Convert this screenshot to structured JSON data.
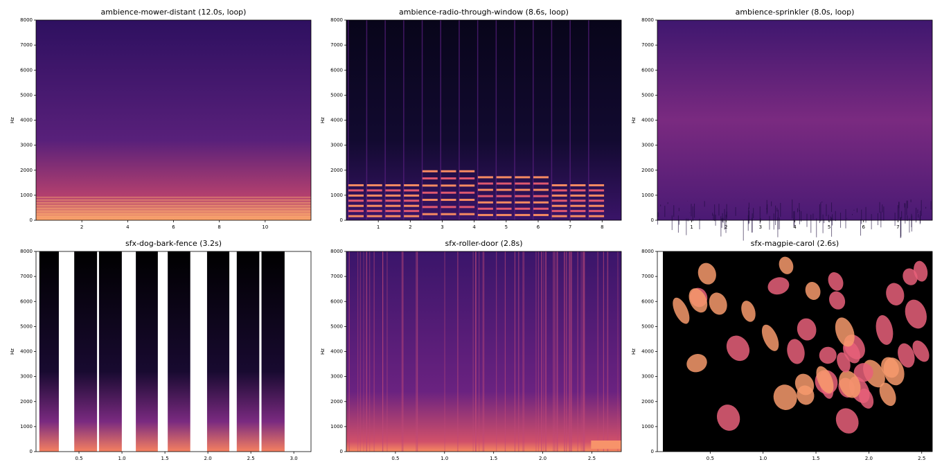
{
  "chart_data": [
    {
      "type": "spectrogram",
      "title": "ambience-mower-distant  (12.0s, loop)",
      "ylabel": "Hz",
      "xlim": [
        0,
        12
      ],
      "ylim": [
        0,
        8000
      ],
      "xticks": [
        2,
        4,
        6,
        8,
        10
      ],
      "yticks": [
        0,
        1000,
        2000,
        3000,
        4000,
        5000,
        6000,
        7000,
        8000
      ]
    },
    {
      "type": "spectrogram",
      "title": "ambience-radio-through-window  (8.6s, loop)",
      "ylabel": "Hz",
      "xlim": [
        0,
        8.6
      ],
      "ylim": [
        0,
        8000
      ],
      "xticks": [
        1,
        2,
        3,
        4,
        5,
        6,
        7,
        8
      ],
      "yticks": [
        0,
        1000,
        2000,
        3000,
        4000,
        5000,
        6000,
        7000,
        8000
      ]
    },
    {
      "type": "spectrogram",
      "title": "ambience-sprinkler  (8.0s, loop)",
      "ylabel": "Hz",
      "xlim": [
        0,
        8
      ],
      "ylim": [
        0,
        8000
      ],
      "xticks": [
        1,
        2,
        3,
        4,
        5,
        6,
        7
      ],
      "yticks": [
        0,
        1000,
        2000,
        3000,
        4000,
        5000,
        6000,
        7000,
        8000
      ]
    },
    {
      "type": "spectrogram",
      "title": "sfx-dog-bark-fence  (3.2s)",
      "ylabel": "Hz",
      "xlim": [
        0,
        3.2
      ],
      "ylim": [
        0,
        8000
      ],
      "xticks": [
        0.5,
        {
          "value": 1,
          "label": "1.0"
        },
        1.5,
        {
          "value": 2,
          "label": "2.0"
        },
        2.5,
        {
          "value": 3,
          "label": "3.0"
        }
      ],
      "yticks": [
        0,
        1000,
        2000,
        3000,
        4000,
        5000,
        6000,
        7000,
        8000
      ]
    },
    {
      "type": "spectrogram",
      "title": "sfx-roller-door  (2.8s)",
      "ylabel": "Hz",
      "xlim": [
        0,
        2.8
      ],
      "ylim": [
        0,
        8000
      ],
      "xticks": [
        0.5,
        {
          "value": 1,
          "label": "1.0"
        },
        1.5,
        {
          "value": 2,
          "label": "2.0"
        },
        2.5
      ],
      "yticks": [
        0,
        1000,
        2000,
        3000,
        4000,
        5000,
        6000,
        7000,
        8000
      ]
    },
    {
      "type": "spectrogram",
      "title": "sfx-magpie-carol  (2.6s)",
      "ylabel": "Hz",
      "xlim": [
        0,
        2.6
      ],
      "ylim": [
        0,
        8000
      ],
      "xticks": [
        0.5,
        {
          "value": 1,
          "label": "1.0"
        },
        1.5,
        {
          "value": 2,
          "label": "2.0"
        },
        2.5
      ],
      "yticks": [
        0,
        1000,
        2000,
        3000,
        4000,
        5000,
        6000,
        7000,
        8000
      ]
    }
  ]
}
